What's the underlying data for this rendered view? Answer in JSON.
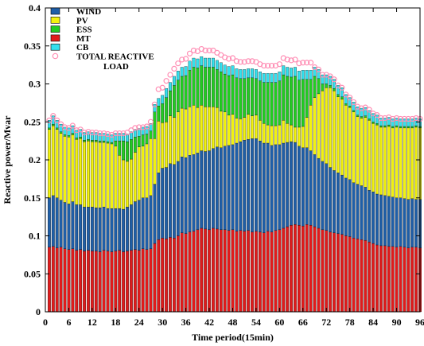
{
  "chart_data": {
    "type": "bar",
    "stacked": true,
    "title": "",
    "xlabel": "Time period(15min)",
    "ylabel": "Reactive power/Mvar",
    "ylim": [
      0,
      0.4
    ],
    "xlim": [
      0,
      96
    ],
    "xticks": [
      0,
      6,
      12,
      18,
      24,
      30,
      36,
      42,
      48,
      54,
      60,
      66,
      72,
      78,
      84,
      90,
      96
    ],
    "yticks": [
      0,
      0.05,
      0.1,
      0.15,
      0.2,
      0.25,
      0.3,
      0.35,
      0.4
    ],
    "ytick_labels": [
      "0",
      "0.05",
      "0.1",
      "0.15",
      "0.2",
      "0.25",
      "0.3",
      "0.35",
      "0.4"
    ],
    "legend_position": "top-left",
    "grid": false,
    "x": [
      1,
      2,
      3,
      4,
      5,
      6,
      7,
      8,
      9,
      10,
      11,
      12,
      13,
      14,
      15,
      16,
      17,
      18,
      19,
      20,
      21,
      22,
      23,
      24,
      25,
      26,
      27,
      28,
      29,
      30,
      31,
      32,
      33,
      34,
      35,
      36,
      37,
      38,
      39,
      40,
      41,
      42,
      43,
      44,
      45,
      46,
      47,
      48,
      49,
      50,
      51,
      52,
      53,
      54,
      55,
      56,
      57,
      58,
      59,
      60,
      61,
      62,
      63,
      64,
      65,
      66,
      67,
      68,
      69,
      70,
      71,
      72,
      73,
      74,
      75,
      76,
      77,
      78,
      79,
      80,
      81,
      82,
      83,
      84,
      85,
      86,
      87,
      88,
      89,
      90,
      91,
      92,
      93,
      94,
      95,
      96
    ],
    "series": [
      {
        "name": "MT",
        "color": "#e01b1b",
        "values": [
          0.085,
          0.086,
          0.084,
          0.085,
          0.083,
          0.082,
          0.083,
          0.081,
          0.082,
          0.08,
          0.081,
          0.08,
          0.08,
          0.079,
          0.081,
          0.08,
          0.079,
          0.08,
          0.081,
          0.079,
          0.08,
          0.081,
          0.082,
          0.081,
          0.083,
          0.082,
          0.083,
          0.09,
          0.095,
          0.097,
          0.096,
          0.098,
          0.097,
          0.1,
          0.104,
          0.103,
          0.105,
          0.106,
          0.108,
          0.11,
          0.109,
          0.108,
          0.11,
          0.109,
          0.108,
          0.108,
          0.107,
          0.108,
          0.106,
          0.107,
          0.106,
          0.107,
          0.105,
          0.106,
          0.105,
          0.104,
          0.106,
          0.105,
          0.107,
          0.108,
          0.11,
          0.112,
          0.114,
          0.115,
          0.114,
          0.113,
          0.115,
          0.114,
          0.112,
          0.11,
          0.108,
          0.107,
          0.105,
          0.104,
          0.103,
          0.102,
          0.1,
          0.099,
          0.097,
          0.096,
          0.095,
          0.094,
          0.092,
          0.09,
          0.088,
          0.087,
          0.087,
          0.086,
          0.086,
          0.085,
          0.086,
          0.085,
          0.084,
          0.085,
          0.085,
          0.084
        ]
      },
      {
        "name": "WIND",
        "color": "#1f5fa8",
        "values": [
          0.065,
          0.067,
          0.066,
          0.062,
          0.061,
          0.06,
          0.062,
          0.06,
          0.059,
          0.058,
          0.057,
          0.058,
          0.057,
          0.058,
          0.057,
          0.056,
          0.057,
          0.056,
          0.055,
          0.056,
          0.058,
          0.06,
          0.063,
          0.066,
          0.067,
          0.068,
          0.07,
          0.078,
          0.088,
          0.092,
          0.094,
          0.097,
          0.097,
          0.098,
          0.1,
          0.1,
          0.101,
          0.101,
          0.101,
          0.102,
          0.102,
          0.104,
          0.105,
          0.108,
          0.108,
          0.11,
          0.112,
          0.112,
          0.116,
          0.117,
          0.12,
          0.12,
          0.123,
          0.122,
          0.12,
          0.118,
          0.116,
          0.114,
          0.113,
          0.112,
          0.112,
          0.111,
          0.11,
          0.108,
          0.104,
          0.103,
          0.101,
          0.098,
          0.095,
          0.092,
          0.09,
          0.088,
          0.085,
          0.082,
          0.08,
          0.078,
          0.076,
          0.075,
          0.073,
          0.072,
          0.071,
          0.07,
          0.068,
          0.068,
          0.067,
          0.067,
          0.066,
          0.066,
          0.065,
          0.065,
          0.064,
          0.064,
          0.064,
          0.064,
          0.063,
          0.064
        ]
      },
      {
        "name": "PV",
        "color": "#f2f20f",
        "values": [
          0.09,
          0.092,
          0.09,
          0.088,
          0.087,
          0.088,
          0.088,
          0.086,
          0.087,
          0.086,
          0.087,
          0.086,
          0.087,
          0.086,
          0.085,
          0.086,
          0.085,
          0.082,
          0.07,
          0.065,
          0.06,
          0.06,
          0.065,
          0.07,
          0.068,
          0.071,
          0.075,
          0.06,
          0.068,
          0.06,
          0.06,
          0.063,
          0.062,
          0.065,
          0.064,
          0.064,
          0.064,
          0.065,
          0.06,
          0.06,
          0.059,
          0.058,
          0.055,
          0.052,
          0.048,
          0.045,
          0.04,
          0.04,
          0.033,
          0.03,
          0.03,
          0.033,
          0.03,
          0.031,
          0.027,
          0.026,
          0.024,
          0.026,
          0.025,
          0.026,
          0.03,
          0.025,
          0.022,
          0.02,
          0.025,
          0.028,
          0.04,
          0.06,
          0.075,
          0.085,
          0.093,
          0.1,
          0.105,
          0.105,
          0.1,
          0.1,
          0.096,
          0.095,
          0.093,
          0.089,
          0.089,
          0.092,
          0.092,
          0.09,
          0.091,
          0.089,
          0.09,
          0.092,
          0.091,
          0.093,
          0.092,
          0.093,
          0.094,
          0.093,
          0.095,
          0.094
        ]
      },
      {
        "name": "ESS",
        "color": "#22cc22",
        "values": [
          0.002,
          0.002,
          0.002,
          0.002,
          0.002,
          0.002,
          0.002,
          0.002,
          0.002,
          0.002,
          0.002,
          0.002,
          0.002,
          0.002,
          0.002,
          0.002,
          0.002,
          0.007,
          0.019,
          0.025,
          0.026,
          0.026,
          0.02,
          0.014,
          0.015,
          0.013,
          0.01,
          0.035,
          0.02,
          0.025,
          0.032,
          0.033,
          0.042,
          0.042,
          0.042,
          0.044,
          0.048,
          0.05,
          0.052,
          0.052,
          0.052,
          0.052,
          0.052,
          0.05,
          0.052,
          0.05,
          0.052,
          0.052,
          0.053,
          0.053,
          0.051,
          0.048,
          0.05,
          0.048,
          0.052,
          0.054,
          0.056,
          0.057,
          0.057,
          0.058,
          0.06,
          0.062,
          0.063,
          0.067,
          0.062,
          0.062,
          0.05,
          0.034,
          0.028,
          0.02,
          0.009,
          0.005,
          0.003,
          0.003,
          0.003,
          0.003,
          0.002,
          0.002,
          0.002,
          0.002,
          0.002,
          0.002,
          0.002,
          0.002,
          0.002,
          0.002,
          0.002,
          0.002,
          0.002,
          0.002,
          0.002,
          0.002,
          0.002,
          0.002,
          0.002,
          0.002
        ]
      },
      {
        "name": "CB",
        "color": "#33e0ee",
        "values": [
          0.01,
          0.011,
          0.01,
          0.01,
          0.01,
          0.01,
          0.01,
          0.01,
          0.01,
          0.01,
          0.01,
          0.01,
          0.01,
          0.01,
          0.01,
          0.01,
          0.01,
          0.01,
          0.01,
          0.01,
          0.01,
          0.01,
          0.01,
          0.01,
          0.01,
          0.01,
          0.01,
          0.01,
          0.01,
          0.011,
          0.012,
          0.011,
          0.012,
          0.012,
          0.012,
          0.012,
          0.012,
          0.012,
          0.012,
          0.012,
          0.012,
          0.012,
          0.012,
          0.012,
          0.012,
          0.012,
          0.012,
          0.012,
          0.012,
          0.012,
          0.012,
          0.012,
          0.012,
          0.012,
          0.012,
          0.012,
          0.012,
          0.012,
          0.012,
          0.012,
          0.012,
          0.012,
          0.012,
          0.012,
          0.012,
          0.012,
          0.012,
          0.012,
          0.012,
          0.012,
          0.012,
          0.012,
          0.012,
          0.012,
          0.012,
          0.012,
          0.012,
          0.011,
          0.011,
          0.011,
          0.011,
          0.011,
          0.011,
          0.011,
          0.011,
          0.01,
          0.01,
          0.01,
          0.01,
          0.01,
          0.01,
          0.01,
          0.01,
          0.01,
          0.01,
          0.01
        ]
      }
    ],
    "total_load": {
      "name": "TOTAL REACTIVE LOAD",
      "color": "#ff8fb5",
      "values": [
        0.252,
        0.258,
        0.252,
        0.247,
        0.243,
        0.242,
        0.245,
        0.239,
        0.24,
        0.236,
        0.237,
        0.236,
        0.236,
        0.235,
        0.235,
        0.234,
        0.233,
        0.235,
        0.235,
        0.235,
        0.236,
        0.239,
        0.242,
        0.243,
        0.243,
        0.244,
        0.25,
        0.273,
        0.293,
        0.295,
        0.304,
        0.312,
        0.32,
        0.327,
        0.332,
        0.333,
        0.34,
        0.344,
        0.343,
        0.346,
        0.344,
        0.344,
        0.344,
        0.341,
        0.338,
        0.335,
        0.333,
        0.334,
        0.33,
        0.329,
        0.329,
        0.33,
        0.33,
        0.329,
        0.326,
        0.324,
        0.324,
        0.324,
        0.324,
        0.326,
        0.334,
        0.332,
        0.331,
        0.332,
        0.327,
        0.328,
        0.328,
        0.328,
        0.322,
        0.319,
        0.312,
        0.312,
        0.31,
        0.306,
        0.298,
        0.295,
        0.286,
        0.282,
        0.276,
        0.27,
        0.268,
        0.269,
        0.266,
        0.261,
        0.259,
        0.255,
        0.255,
        0.256,
        0.254,
        0.255,
        0.254,
        0.254,
        0.254,
        0.254,
        0.255,
        0.254
      ]
    },
    "legend": [
      {
        "label": "WIND",
        "color": "#1f5fa8",
        "kind": "box"
      },
      {
        "label": "PV",
        "color": "#f2f20f",
        "kind": "box"
      },
      {
        "label": "ESS",
        "color": "#22cc22",
        "kind": "box"
      },
      {
        "label": "MT",
        "color": "#e01b1b",
        "kind": "box"
      },
      {
        "label": "CB",
        "color": "#33e0ee",
        "kind": "box"
      },
      {
        "label": "TOTAL REACTIVE",
        "label2": "LOAD",
        "color": "#ff8fb5",
        "kind": "marker"
      }
    ]
  }
}
